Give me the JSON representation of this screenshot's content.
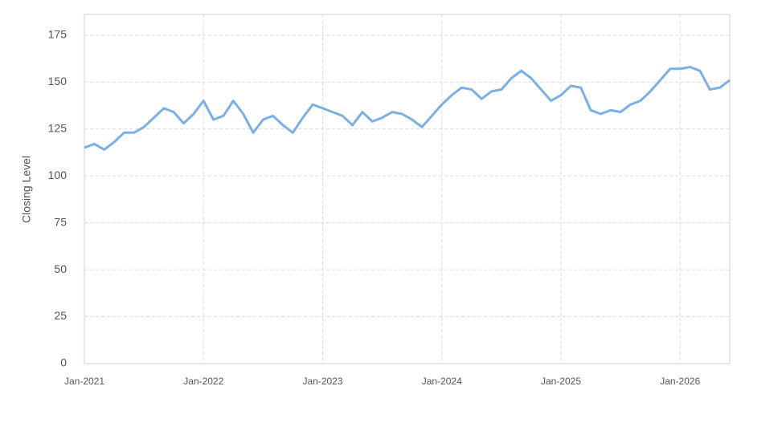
{
  "chart_data": {
    "type": "line",
    "y_label": "Closing Level",
    "x": [
      "2021-01",
      "2021-02",
      "2021-03",
      "2021-04",
      "2021-05",
      "2021-06",
      "2021-07",
      "2021-08",
      "2021-09",
      "2021-10",
      "2021-11",
      "2021-12",
      "2022-01",
      "2022-02",
      "2022-03",
      "2022-04",
      "2022-05",
      "2022-06",
      "2022-07",
      "2022-08",
      "2022-09",
      "2022-10",
      "2022-11",
      "2022-12",
      "2023-01",
      "2023-02",
      "2023-03",
      "2023-04",
      "2023-05",
      "2023-06",
      "2023-07",
      "2023-08",
      "2023-09",
      "2023-10",
      "2023-11",
      "2023-12",
      "2024-01",
      "2024-02",
      "2024-03",
      "2024-04",
      "2024-05",
      "2024-06",
      "2024-07",
      "2024-08",
      "2024-09",
      "2024-10",
      "2024-11",
      "2024-12",
      "2025-01",
      "2025-02",
      "2025-03",
      "2025-04",
      "2025-05",
      "2025-06",
      "2025-07",
      "2025-08",
      "2025-09",
      "2025-10",
      "2025-11",
      "2025-12",
      "2026-01",
      "2026-02",
      "2026-03",
      "2026-04",
      "2026-05",
      "2026-06"
    ],
    "series": [
      {
        "name": "Closing Level",
        "color": "#7ab0e3",
        "values": [
          115,
          117,
          114,
          118,
          123,
          123,
          126,
          131,
          136,
          134,
          128,
          133,
          140,
          130,
          132,
          140,
          133,
          123,
          130,
          132,
          127,
          123,
          131,
          138,
          136,
          134,
          132,
          127,
          134,
          129,
          131,
          134,
          133,
          130,
          126,
          132,
          138,
          143,
          147,
          146,
          141,
          145,
          146,
          152,
          156,
          152,
          146,
          140,
          143,
          148,
          147,
          135,
          133,
          135,
          134,
          138,
          140,
          145,
          151,
          157,
          157,
          158,
          156,
          146,
          147,
          151
        ]
      }
    ],
    "xlim": [
      "2021-01",
      "2026-06"
    ],
    "xticks": [
      {
        "value": "2021-01",
        "label": "Jan-2021"
      },
      {
        "value": "2022-01",
        "label": "Jan-2022"
      },
      {
        "value": "2023-01",
        "label": "Jan-2023"
      },
      {
        "value": "2024-01",
        "label": "Jan-2024"
      },
      {
        "value": "2025-01",
        "label": "Jan-2025"
      },
      {
        "value": "2026-01",
        "label": "Jan-2026"
      }
    ],
    "ylim": [
      0,
      186
    ],
    "yticks": [
      0,
      25,
      50,
      75,
      100,
      125,
      150,
      175
    ],
    "grid": true
  }
}
